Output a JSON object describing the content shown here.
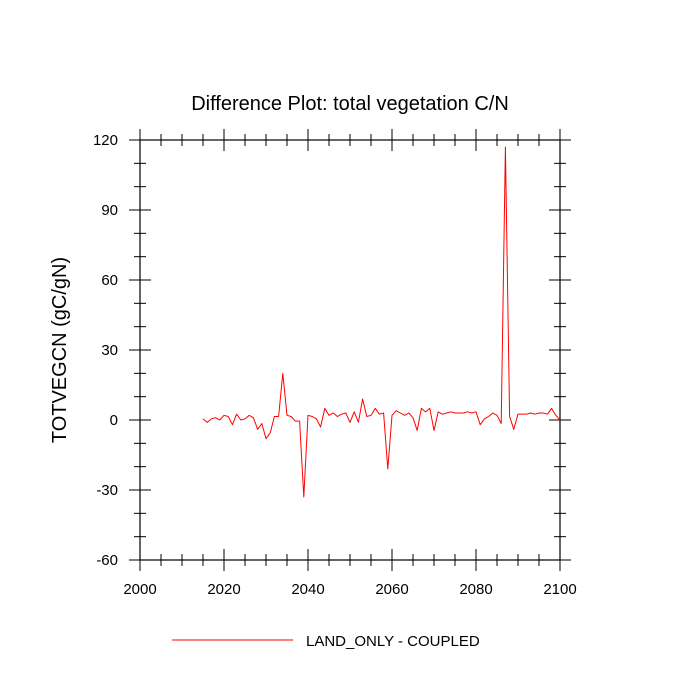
{
  "chart_data": {
    "type": "line",
    "title": "Difference Plot: total vegetation C/N",
    "xlabel": "",
    "ylabel": "TOTVEGCN  (gC/gN)",
    "xlim": [
      2000,
      2100
    ],
    "ylim": [
      -60,
      120
    ],
    "x_ticks": [
      2000,
      2020,
      2040,
      2060,
      2080,
      2100
    ],
    "y_ticks": [
      -60,
      -30,
      0,
      30,
      60,
      90,
      120
    ],
    "grid": false,
    "legend_position": "bottom",
    "series": [
      {
        "name": "LAND_ONLY - COUPLED",
        "color": "#ff0000",
        "x": [
          2015,
          2016,
          2017,
          2018,
          2019,
          2020,
          2021,
          2022,
          2023,
          2024,
          2025,
          2026,
          2027,
          2028,
          2029,
          2030,
          2031,
          2032,
          2033,
          2034,
          2035,
          2036,
          2037,
          2038,
          2039,
          2040,
          2041,
          2042,
          2043,
          2044,
          2045,
          2046,
          2047,
          2048,
          2049,
          2050,
          2051,
          2052,
          2053,
          2054,
          2055,
          2056,
          2057,
          2058,
          2059,
          2060,
          2061,
          2062,
          2063,
          2064,
          2065,
          2066,
          2067,
          2068,
          2069,
          2070,
          2071,
          2072,
          2073,
          2074,
          2075,
          2076,
          2077,
          2078,
          2079,
          2080,
          2081,
          2082,
          2083,
          2084,
          2085,
          2086,
          2087,
          2088,
          2089,
          2090,
          2091,
          2092,
          2093,
          2094,
          2095,
          2096,
          2097,
          2098,
          2099,
          2100
        ],
        "y": [
          0.5,
          -1,
          0.5,
          1,
          0,
          2,
          1.5,
          -2,
          2.5,
          0,
          0.5,
          2,
          1,
          -4,
          -1.5,
          -8,
          -5.5,
          1.5,
          1.5,
          20,
          2,
          1.5,
          -0.5,
          -0.5,
          -33,
          2,
          1.5,
          0.5,
          -3,
          5,
          2,
          3,
          1.5,
          2.5,
          3,
          -1,
          3.5,
          -1,
          9,
          1.5,
          2,
          5,
          2.5,
          3,
          -21,
          2,
          4,
          3,
          2,
          3,
          1,
          -4.5,
          5,
          3.5,
          5,
          -4.5,
          3.5,
          2.5,
          3,
          3.5,
          3,
          3,
          3,
          3.5,
          3,
          3.5,
          -2,
          0.5,
          1.5,
          3,
          2,
          -1.5,
          117,
          1.5,
          -4,
          2.5,
          2.5,
          2.5,
          3,
          2.5,
          3,
          3,
          2.5,
          5,
          2,
          0
        ]
      }
    ]
  }
}
